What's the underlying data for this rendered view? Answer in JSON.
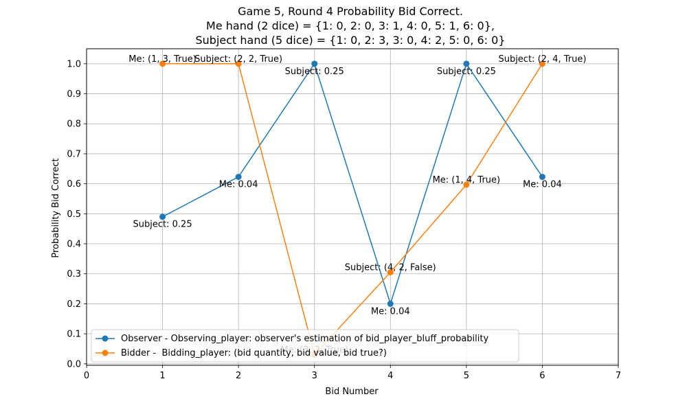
{
  "chart_data": {
    "type": "line",
    "title_lines": [
      "Game 5, Round 4 Probability Bid Correct.",
      "Me hand (2 dice) = {1: 0, 2: 0, 3: 1, 4: 0, 5: 1, 6: 0},",
      "Subject hand (5 dice) = {1: 0, 2: 3, 3: 0, 4: 2, 5: 0, 6: 0}"
    ],
    "xlabel": "Bid Number",
    "ylabel": "Probability Bid Correct",
    "xlim": [
      0,
      7
    ],
    "ylim": [
      -0.005,
      1.05
    ],
    "xticks": [
      0,
      1,
      2,
      3,
      4,
      5,
      6,
      7
    ],
    "yticks": [
      0.0,
      0.1,
      0.2,
      0.3,
      0.4,
      0.5,
      0.6,
      0.7,
      0.8,
      0.9,
      1.0
    ],
    "xtick_labels": [
      "0",
      "1",
      "2",
      "3",
      "4",
      "5",
      "6",
      "7"
    ],
    "ytick_labels": [
      "0.0",
      "0.1",
      "0.2",
      "0.3",
      "0.4",
      "0.5",
      "0.6",
      "0.7",
      "0.8",
      "0.9",
      "1.0"
    ],
    "grid": true,
    "legend_position": "lower-left",
    "series": [
      {
        "name": "Observer - Observing_player: observer's estimation of bid_player_bluff_probability",
        "color": "#1f77b4",
        "x": [
          1,
          2,
          3,
          4,
          5,
          6
        ],
        "y": [
          0.49,
          0.623,
          1.0,
          0.2,
          1.0,
          0.623
        ],
        "annotations": [
          "Subject: 0.25",
          "Me: 0.04",
          "Subject: 0.25",
          "Me: 0.04",
          "Subject: 0.25",
          "Me: 0.04"
        ]
      },
      {
        "name": "Bidder -  Bidding_player: (bid quantity, bid value, bid true?)",
        "color": "#ff7f0e",
        "x": [
          1,
          2,
          3,
          4,
          5,
          6
        ],
        "y": [
          1.0,
          1.0,
          0.03,
          0.305,
          0.597,
          1.0
        ],
        "annotations": [
          "Me: (1, 3, True)",
          "Subject: (2, 2, True)",
          "Me: (3, 2, True)",
          "Subject: (4, 2, False)",
          "Me: (1, 4, True)",
          "Subject: (2, 4, True)"
        ]
      }
    ]
  }
}
